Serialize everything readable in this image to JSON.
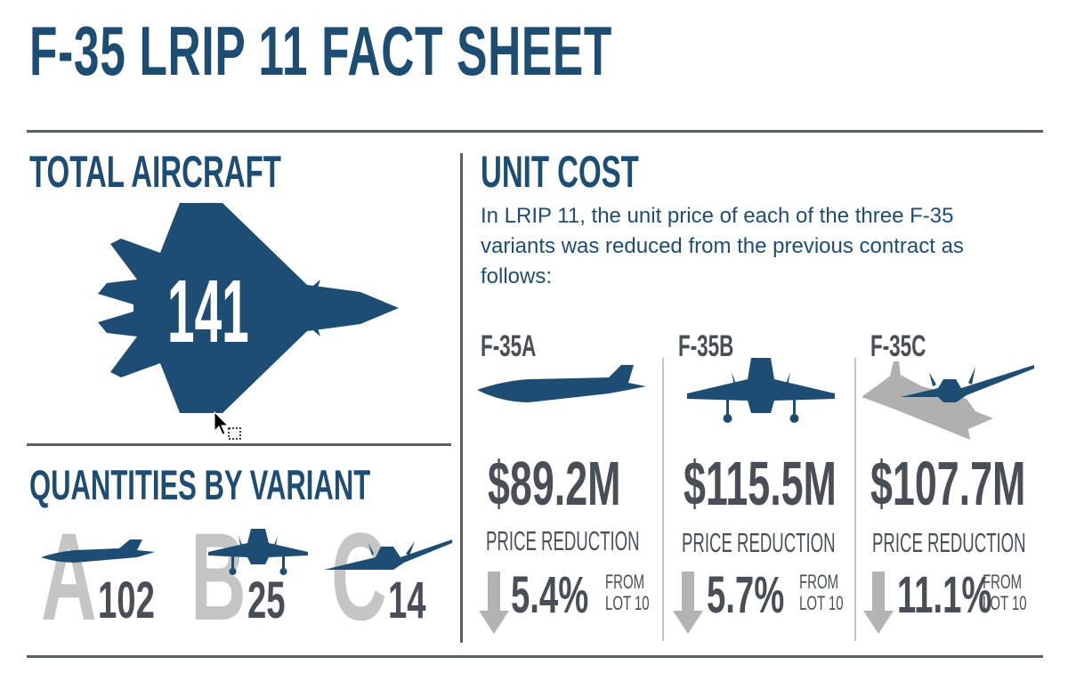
{
  "title": "F-35 LRIP 11 FACT SHEET",
  "total_aircraft": {
    "heading": "TOTAL AIRCRAFT",
    "value": "141",
    "icon": "fighter-jet-top-view-icon"
  },
  "quantities": {
    "heading": "QUANTITIES BY VARIANT",
    "variants": [
      {
        "letter": "A",
        "quantity": "102",
        "icon": "f35a-jet-icon"
      },
      {
        "letter": "B",
        "quantity": "25",
        "icon": "f35b-jet-front-icon"
      },
      {
        "letter": "C",
        "quantity": "14",
        "icon": "f35c-jet-icon"
      }
    ]
  },
  "unit_cost": {
    "heading": "UNIT COST",
    "intro": "In LRIP 11, the unit price of each of the three F-35 variants was reduced from the previous contract as follows:",
    "columns": [
      {
        "name": "F-35A",
        "price": "$89.2M",
        "reduction_label": "PRICE REDUCTION",
        "percent": "5.4%",
        "from": "FROM\nLOT 10",
        "icon": "f35a-side-view-icon"
      },
      {
        "name": "F-35B",
        "price": "$115.5M",
        "reduction_label": "PRICE REDUCTION",
        "percent": "5.7%",
        "from": "FROM\nLOT 10",
        "icon": "f35b-front-view-icon"
      },
      {
        "name": "F-35C",
        "price": "$107.7M",
        "reduction_label": "PRICE REDUCTION",
        "percent": "11.1%",
        "from": "FROM\nLOT 10",
        "icon": "f35c-carrier-icon"
      }
    ]
  },
  "colors": {
    "navy": "#1e4d73",
    "dark_gray": "#4a4f57",
    "light_gray": "#c5c5c5",
    "arrow_gray": "#b3b3b3"
  }
}
